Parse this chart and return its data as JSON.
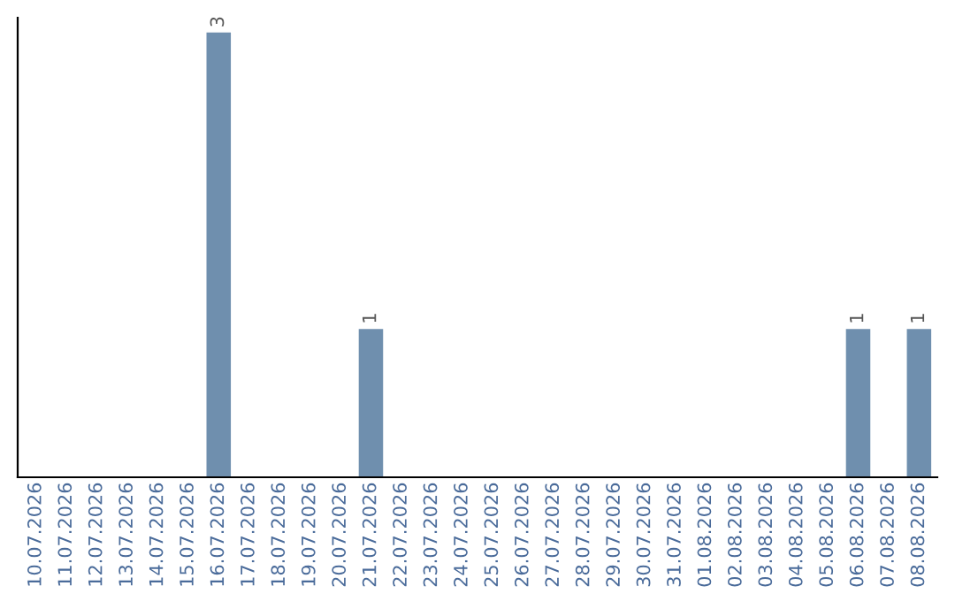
{
  "chart_data": {
    "type": "bar",
    "categories": [
      "10.07.2026",
      "11.07.2026",
      "12.07.2026",
      "13.07.2026",
      "14.07.2026",
      "15.07.2026",
      "16.07.2026",
      "17.07.2026",
      "18.07.2026",
      "19.07.2026",
      "20.07.2026",
      "21.07.2026",
      "22.07.2026",
      "23.07.2026",
      "24.07.2026",
      "25.07.2026",
      "26.07.2026",
      "27.07.2026",
      "28.07.2026",
      "29.07.2026",
      "30.07.2026",
      "31.07.2026",
      "01.08.2026",
      "02.08.2026",
      "03.08.2026",
      "04.08.2026",
      "05.08.2026",
      "06.08.2026",
      "07.08.2026",
      "08.08.2026"
    ],
    "values": [
      0,
      0,
      0,
      0,
      0,
      0,
      3,
      0,
      0,
      0,
      0,
      1,
      0,
      0,
      0,
      0,
      0,
      0,
      0,
      0,
      0,
      0,
      0,
      0,
      0,
      0,
      0,
      1,
      0,
      1
    ],
    "value_labels": [
      null,
      null,
      null,
      null,
      null,
      null,
      "3",
      null,
      null,
      null,
      null,
      "1",
      null,
      null,
      null,
      null,
      null,
      null,
      null,
      null,
      null,
      null,
      null,
      null,
      null,
      null,
      null,
      "1",
      null,
      "1"
    ],
    "color": "#6f8fae",
    "ylim": [
      0,
      3.1
    ],
    "tick_labels": "x",
    "grid": false,
    "legend": false
  }
}
